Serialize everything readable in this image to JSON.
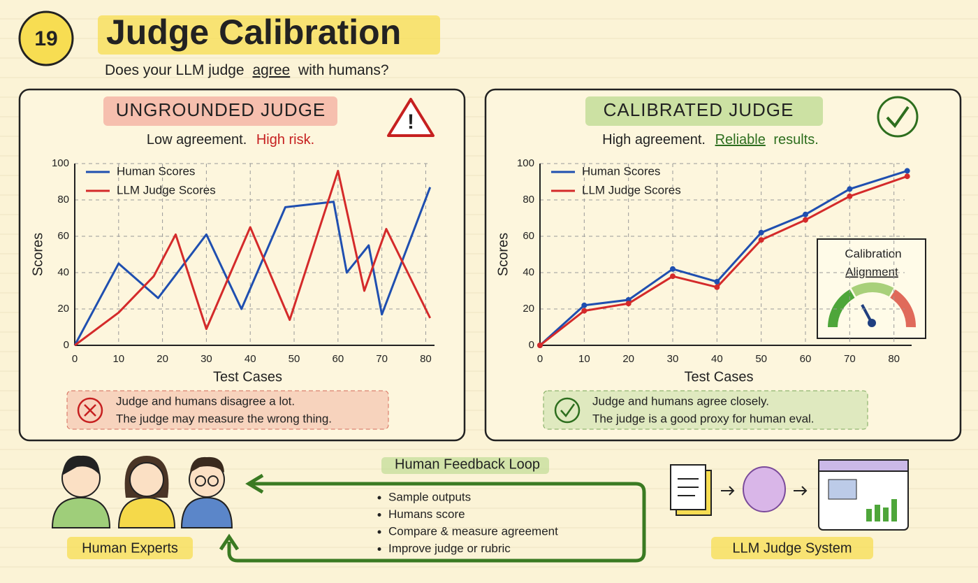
{
  "header": {
    "number": "19",
    "title": "Judge Calibration",
    "subtitle": [
      "Does your LLM judge",
      "agree",
      "with humans?"
    ]
  },
  "panels": [
    {
      "heading": "UNGROUNDED JUDGE",
      "tagline": [
        "Low agreement.",
        "High risk."
      ],
      "note": [
        "Judge and humans disagree a lot.",
        "The judge may measure the wrong thing."
      ]
    },
    {
      "heading": "CALIBRATED JUDGE",
      "tagline": [
        "High agreement.",
        "Reliable",
        "results."
      ],
      "note": [
        "Judge and humans agree closely.",
        "The judge is a good proxy for human eval."
      ],
      "inset": [
        "Calibration",
        "Alignment"
      ]
    }
  ],
  "chart_data": [
    {
      "type": "line",
      "xlabel": "Test Cases",
      "ylabel": "Scores",
      "xlim": [
        0,
        82
      ],
      "ylim": [
        0,
        100
      ],
      "xticks": [
        0,
        10,
        20,
        30,
        40,
        50,
        60,
        70,
        80
      ],
      "yticks": [
        0,
        20,
        40,
        60,
        80,
        100
      ],
      "grid": true,
      "legend": "top-left",
      "markers": false,
      "series": [
        {
          "name": "Human Scores",
          "color": "#1f4fb0",
          "x": [
            0,
            10,
            19,
            30,
            38,
            48,
            59,
            62,
            67,
            70,
            81
          ],
          "values": [
            0,
            45,
            26,
            61,
            20,
            76,
            79,
            40,
            55,
            17,
            87
          ]
        },
        {
          "name": "LLM Judge Scores",
          "color": "#d42a2a",
          "x": [
            0,
            10,
            18,
            23,
            30,
            40,
            49,
            60,
            66,
            71,
            81
          ],
          "values": [
            0,
            18,
            38,
            61,
            9,
            65,
            14,
            96,
            30,
            64,
            15
          ]
        }
      ]
    },
    {
      "type": "line",
      "xlabel": "Test Cases",
      "ylabel": "Scores",
      "xlim": [
        0,
        84
      ],
      "ylim": [
        0,
        100
      ],
      "xticks": [
        0,
        10,
        20,
        30,
        40,
        50,
        60,
        70,
        80
      ],
      "yticks": [
        0,
        20,
        40,
        60,
        80,
        100
      ],
      "grid": true,
      "legend": "top-left",
      "markers": true,
      "series": [
        {
          "name": "Human Scores",
          "color": "#1f4fb0",
          "x": [
            0,
            10,
            20,
            30,
            40,
            50,
            60,
            70,
            83
          ],
          "values": [
            0,
            22,
            25,
            42,
            35,
            62,
            72,
            86,
            96
          ]
        },
        {
          "name": "LLM Judge Scores",
          "color": "#d42a2a",
          "x": [
            0,
            10,
            20,
            30,
            40,
            50,
            60,
            70,
            83
          ],
          "values": [
            0,
            19,
            23,
            38,
            32,
            58,
            69,
            82,
            93
          ]
        }
      ]
    }
  ],
  "feedback": {
    "title": "Human Feedback Loop",
    "items": [
      "Sample outputs",
      "Humans score",
      "Compare & measure agreement",
      "Improve judge or rubric"
    ]
  },
  "experts": "Human Experts",
  "system": "LLM Judge System"
}
